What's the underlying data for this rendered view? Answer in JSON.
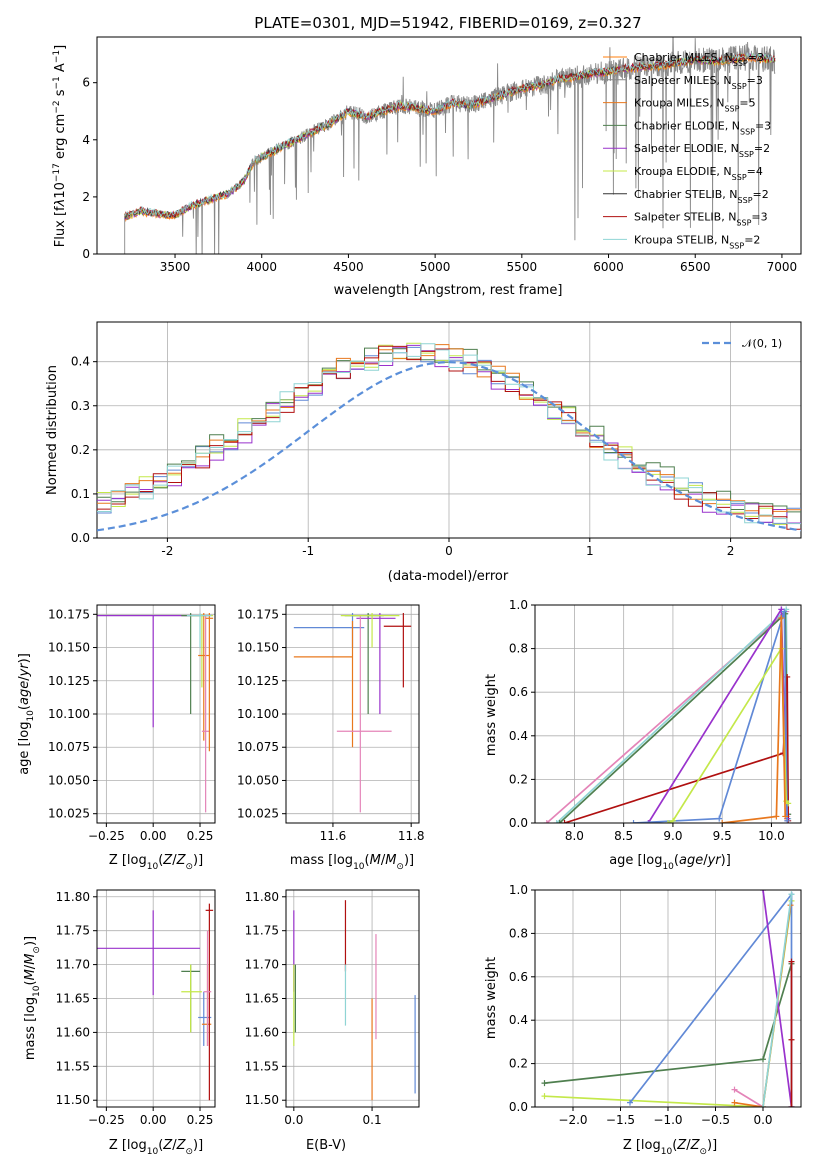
{
  "figure": {
    "title": "PLATE=0301, MJD=51942, FIBERID=0169, z=0.327"
  },
  "colors": {
    "cmiles": "#ff7f0e",
    "smiles": "#888888",
    "kmiles": "#e8781e",
    "celodie": "#4f7f4f",
    "selodie": "#9932cc",
    "kelodie": "#c4e84a",
    "cstelib": "#333333",
    "sstelib": "#b01010",
    "kstelib": "#8fd4d4",
    "blue": "#6189d6",
    "pink": "#e484b8",
    "normal": "#5b8fd9"
  },
  "chart_data": [
    {
      "id": "spectrum",
      "type": "line",
      "xlabel": "wavelength [Angstrom, rest frame]",
      "ylabel": "Flux [f$_\\lambda$10$^{-17}$ erg cm$^{-2}$ s$^{-1}$ A$^{-1}$]",
      "xlim": [
        3050,
        7110
      ],
      "ylim": [
        0,
        7.6
      ],
      "xticks": [
        3500,
        4000,
        4500,
        5000,
        5500,
        6000,
        6500,
        7000
      ],
      "yticks": [
        0,
        2,
        4,
        6
      ],
      "grid": false,
      "legend_position": "upper-right",
      "series": [
        {
          "name": "Chabrier MILES, N",
          "sub": "SSP",
          "suffix": "=3",
          "color_key": "cmiles"
        },
        {
          "name": "Salpeter MILES, N",
          "sub": "SSP",
          "suffix": "=3",
          "color_key": "smiles"
        },
        {
          "name": "Kroupa MILES, N",
          "sub": "SSP",
          "suffix": "=5",
          "color_key": "kmiles"
        },
        {
          "name": "Chabrier ELODIE, N",
          "sub": "SSP",
          "suffix": "=3",
          "color_key": "celodie"
        },
        {
          "name": "Salpeter ELODIE, N",
          "sub": "SSP",
          "suffix": "=2",
          "color_key": "selodie"
        },
        {
          "name": "Kroupa ELODIE, N",
          "sub": "SSP",
          "suffix": "=4",
          "color_key": "kelodie"
        },
        {
          "name": "Chabrier STELIB, N",
          "sub": "SSP",
          "suffix": "=2",
          "color_key": "cstelib"
        },
        {
          "name": "Salpeter STELIB, N",
          "sub": "SSP",
          "suffix": "=3",
          "color_key": "sstelib"
        },
        {
          "name": "Kroupa STELIB, N",
          "sub": "SSP",
          "suffix": "=2",
          "color_key": "kstelib"
        }
      ],
      "continuum": {
        "x": [
          3210,
          3260,
          3300,
          3400,
          3500,
          3600,
          3700,
          3800,
          3850,
          3900,
          3950,
          4000,
          4100,
          4200,
          4300,
          4400,
          4500,
          4600,
          4700,
          4800,
          4900,
          5000,
          5100,
          5200,
          5300,
          5400,
          5500,
          5600,
          5700,
          5800,
          5900,
          6000,
          6100,
          6200,
          6300,
          6400,
          6500,
          6600,
          6700,
          6800,
          6900,
          6960
        ],
        "y": [
          1.3,
          1.4,
          1.5,
          1.4,
          1.35,
          1.7,
          1.9,
          2.1,
          2.3,
          2.6,
          3.2,
          3.4,
          3.7,
          4.0,
          4.3,
          4.6,
          5.0,
          4.8,
          5.0,
          5.2,
          5.1,
          5.0,
          5.3,
          5.2,
          5.4,
          5.6,
          5.8,
          5.9,
          6.1,
          6.2,
          6.3,
          6.4,
          6.5,
          6.55,
          6.6,
          6.7,
          6.8,
          6.75,
          6.8,
          6.9,
          6.85,
          6.8
        ]
      }
    },
    {
      "id": "residuals",
      "type": "step",
      "xlabel": "(data-model)/error",
      "ylabel": "Normed distribution",
      "xlim": [
        -2.5,
        2.5
      ],
      "ylim": [
        0,
        0.49
      ],
      "xticks": [
        -2,
        -1,
        0,
        1,
        2
      ],
      "yticks": [
        0.0,
        0.1,
        0.2,
        0.3,
        0.4
      ],
      "grid": true,
      "legend_position": "upper-right",
      "legend_label": "𝒩(0, 1)",
      "bin_width": 0.1,
      "series": [
        {
          "color_key": "blue",
          "offset": 0.002,
          "seed": 1
        },
        {
          "color_key": "kelodie",
          "offset": 0.006,
          "seed": 2
        },
        {
          "color_key": "selodie",
          "offset": -0.004,
          "seed": 3
        },
        {
          "color_key": "celodie",
          "offset": 0.01,
          "seed": 4
        },
        {
          "color_key": "kmiles",
          "offset": 0.004,
          "seed": 5
        },
        {
          "color_key": "sstelib",
          "offset": -0.002,
          "seed": 6
        },
        {
          "color_key": "kstelib",
          "offset": 0.0,
          "seed": 7
        }
      ]
    },
    {
      "id": "age_vs_Z",
      "type": "errorbar",
      "xlabel": "Z [log$_{10}$(Z/Z$_\\odot$)]",
      "ylabel": "age  [log$_{10}$(age/yr)]",
      "xlim": [
        -0.3,
        0.33
      ],
      "ylim": [
        10.018,
        10.182
      ],
      "xticks": [
        -0.25,
        0.0,
        0.25
      ],
      "xticklabels": [
        "−0.25",
        "0.00",
        "0.25"
      ],
      "yticks": [
        10.025,
        10.05,
        10.075,
        10.1,
        10.125,
        10.15,
        10.175
      ],
      "grid": true,
      "points": [
        {
          "x": 0.0,
          "y": 10.174,
          "xlo": -0.3,
          "xhi": 0.3,
          "ylo": 10.09,
          "yhi": 10.174,
          "color_key": "selodie"
        },
        {
          "x": 0.2,
          "y": 10.174,
          "xlo": 0.15,
          "xhi": 0.25,
          "ylo": 10.1,
          "yhi": 10.176,
          "color_key": "celodie"
        },
        {
          "x": 0.26,
          "y": 10.174,
          "xlo": 0.2,
          "xhi": 0.32,
          "ylo": 10.12,
          "yhi": 10.175,
          "color_key": "kelodie"
        },
        {
          "x": 0.27,
          "y": 10.144,
          "xlo": 0.24,
          "xhi": 0.3,
          "ylo": 10.08,
          "yhi": 10.176,
          "color_key": "kmiles"
        },
        {
          "x": 0.28,
          "y": 10.087,
          "xlo": 0.26,
          "xhi": 0.3,
          "ylo": 10.026,
          "yhi": 10.174,
          "color_key": "pink"
        },
        {
          "x": 0.3,
          "y": 10.172,
          "xlo": 0.28,
          "xhi": 0.32,
          "ylo": 10.072,
          "yhi": 10.176,
          "color_key": "kmiles"
        },
        {
          "x": 0.25,
          "y": 10.174,
          "xlo": 0.18,
          "xhi": 0.31,
          "ylo": 10.15,
          "yhi": 10.176,
          "color_key": "kstelib"
        }
      ]
    },
    {
      "id": "age_vs_mass",
      "type": "errorbar",
      "xlabel": "mass [log$_{10}$(M/M$_\\odot$)]",
      "xlim": [
        11.48,
        11.82
      ],
      "ylim": [
        10.018,
        10.182
      ],
      "xticks": [
        11.6,
        11.8
      ],
      "yticks": [
        10.025,
        10.05,
        10.075,
        10.1,
        10.125,
        10.15,
        10.175
      ],
      "grid": true,
      "points": [
        {
          "x": 11.65,
          "y": 10.165,
          "xlo": 11.5,
          "xhi": 11.68,
          "ylo": 10.15,
          "yhi": 10.176,
          "color_key": "blue"
        },
        {
          "x": 11.65,
          "y": 10.143,
          "xlo": 11.5,
          "xhi": 11.65,
          "ylo": 10.075,
          "yhi": 10.17,
          "color_key": "kmiles"
        },
        {
          "x": 11.69,
          "y": 10.174,
          "xlo": 11.63,
          "xhi": 11.73,
          "ylo": 10.1,
          "yhi": 10.176,
          "color_key": "celodie"
        },
        {
          "x": 11.72,
          "y": 10.172,
          "xlo": 11.66,
          "xhi": 11.76,
          "ylo": 10.1,
          "yhi": 10.176,
          "color_key": "selodie"
        },
        {
          "x": 11.78,
          "y": 10.166,
          "xlo": 11.73,
          "xhi": 11.8,
          "ylo": 10.12,
          "yhi": 10.176,
          "color_key": "sstelib"
        },
        {
          "x": 11.67,
          "y": 10.087,
          "xlo": 11.61,
          "xhi": 11.75,
          "ylo": 10.026,
          "yhi": 10.174,
          "color_key": "pink"
        },
        {
          "x": 11.7,
          "y": 10.174,
          "xlo": 11.62,
          "xhi": 11.77,
          "ylo": 10.15,
          "yhi": 10.176,
          "color_key": "kelodie"
        }
      ]
    },
    {
      "id": "weight_vs_age",
      "type": "line",
      "xlabel": "age  [log$_{10}$(age/yr)]",
      "ylabel": "mass weight",
      "xlim": [
        7.6,
        10.3
      ],
      "ylim": [
        0,
        1.0
      ],
      "xticks": [
        8.0,
        8.5,
        9.0,
        9.5,
        10.0
      ],
      "yticks": [
        0.0,
        0.2,
        0.4,
        0.6,
        0.8,
        1.0
      ],
      "grid": true,
      "series": [
        {
          "color_key": "pink",
          "x": [
            7.72,
            10.15,
            10.16
          ],
          "y": [
            0.0,
            0.97,
            0.03
          ]
        },
        {
          "color_key": "kstelib",
          "x": [
            7.82,
            10.15,
            10.17
          ],
          "y": [
            0.0,
            0.98,
            0.02
          ]
        },
        {
          "color_key": "celodie",
          "x": [
            7.85,
            10.14,
            10.17
          ],
          "y": [
            0.0,
            0.96,
            0.04
          ]
        },
        {
          "color_key": "sstelib",
          "x": [
            7.9,
            10.12,
            10.16,
            10.17
          ],
          "y": [
            0.0,
            0.32,
            0.67,
            0.01
          ]
        },
        {
          "color_key": "selodie",
          "x": [
            8.75,
            10.1,
            10.16
          ],
          "y": [
            0.0,
            0.98,
            0.02
          ]
        },
        {
          "color_key": "blue",
          "x": [
            8.6,
            9.47,
            10.13,
            10.16
          ],
          "y": [
            0.0,
            0.02,
            0.97,
            0.01
          ]
        },
        {
          "color_key": "kelodie",
          "x": [
            8.95,
            9.0,
            10.1,
            10.15,
            10.17
          ],
          "y": [
            0.0,
            0.01,
            0.8,
            0.1,
            0.09
          ]
        },
        {
          "color_key": "kmiles",
          "x": [
            9.5,
            10.05,
            10.1,
            10.14
          ],
          "y": [
            0.0,
            0.03,
            0.94,
            0.03
          ]
        }
      ]
    },
    {
      "id": "mass_vs_Z",
      "type": "errorbar",
      "xlabel": "Z [log$_{10}$(Z/Z$_\\odot$)]",
      "ylabel": "mass [log$_{10}$(M/M$_\\odot$)]",
      "xlim": [
        -0.3,
        0.33
      ],
      "ylim": [
        11.49,
        11.81
      ],
      "xticks": [
        -0.25,
        0.0,
        0.25
      ],
      "xticklabels": [
        "−0.25",
        "0.00",
        "0.25"
      ],
      "yticks": [
        11.5,
        11.55,
        11.6,
        11.65,
        11.7,
        11.75,
        11.8
      ],
      "grid": true,
      "points": [
        {
          "x": 0.0,
          "y": 11.724,
          "xlo": -0.3,
          "xhi": 0.25,
          "ylo": 11.655,
          "yhi": 11.78,
          "color_key": "selodie"
        },
        {
          "x": 0.2,
          "y": 11.69,
          "xlo": 0.15,
          "xhi": 0.25,
          "ylo": 11.6,
          "yhi": 11.7,
          "color_key": "celodie"
        },
        {
          "x": 0.2,
          "y": 11.66,
          "xlo": 0.15,
          "xhi": 0.26,
          "ylo": 11.6,
          "yhi": 11.7,
          "color_key": "kelodie"
        },
        {
          "x": 0.27,
          "y": 11.622,
          "xlo": 0.24,
          "xhi": 0.31,
          "ylo": 11.58,
          "yhi": 11.66,
          "color_key": "blue"
        },
        {
          "x": 0.29,
          "y": 11.612,
          "xlo": 0.26,
          "xhi": 0.31,
          "ylo": 11.58,
          "yhi": 11.7,
          "color_key": "kmiles"
        },
        {
          "x": 0.3,
          "y": 11.78,
          "xlo": 0.28,
          "xhi": 0.32,
          "ylo": 11.5,
          "yhi": 11.79,
          "color_key": "sstelib"
        },
        {
          "x": 0.29,
          "y": 11.66,
          "xlo": 0.27,
          "xhi": 0.31,
          "ylo": 11.58,
          "yhi": 11.75,
          "color_key": "pink"
        }
      ]
    },
    {
      "id": "mass_vs_ebv",
      "type": "errorbar",
      "xlabel": "E(B-V)",
      "xlim": [
        -0.01,
        0.16
      ],
      "ylim": [
        11.49,
        11.81
      ],
      "xticks": [
        0.0,
        0.1
      ],
      "yticks": [
        11.5,
        11.55,
        11.6,
        11.65,
        11.7,
        11.75,
        11.8
      ],
      "grid": true,
      "points": [
        {
          "x": 0.0,
          "y": 11.72,
          "ylo": 11.66,
          "yhi": 11.78,
          "color_key": "selodie"
        },
        {
          "x": 0.002,
          "y": 11.66,
          "ylo": 11.6,
          "yhi": 11.7,
          "color_key": "celodie"
        },
        {
          "x": 0.0,
          "y": 11.62,
          "ylo": 11.58,
          "yhi": 11.7,
          "color_key": "kelodie"
        },
        {
          "x": 0.066,
          "y": 11.74,
          "ylo": 11.69,
          "yhi": 11.795,
          "color_key": "sstelib"
        },
        {
          "x": 0.066,
          "y": 11.66,
          "ylo": 11.61,
          "yhi": 11.7,
          "color_key": "kstelib"
        },
        {
          "x": 0.1,
          "y": 11.57,
          "ylo": 11.5,
          "yhi": 11.65,
          "color_key": "kmiles"
        },
        {
          "x": 0.105,
          "y": 11.68,
          "ylo": 11.59,
          "yhi": 11.745,
          "color_key": "pink"
        },
        {
          "x": 0.155,
          "y": 11.6,
          "ylo": 11.51,
          "yhi": 11.655,
          "color_key": "blue"
        }
      ]
    },
    {
      "id": "weight_vs_Z",
      "type": "line",
      "xlabel": "Z [log$_{10}$(Z/Z$_\\odot$)]",
      "ylabel": "mass weight",
      "xlim": [
        -2.4,
        0.4
      ],
      "ylim": [
        0,
        1.0
      ],
      "xticks": [
        -2.0,
        -1.5,
        -1.0,
        -0.5,
        0.0
      ],
      "xticklabels": [
        "−2.0",
        "−1.5",
        "−1.0",
        "−0.5",
        "0.0"
      ],
      "yticks": [
        0.0,
        0.2,
        0.4,
        0.6,
        0.8,
        1.0
      ],
      "grid": true,
      "series": [
        {
          "color_key": "celodie",
          "x": [
            -2.3,
            0.0,
            0.3
          ],
          "y": [
            0.11,
            0.22,
            0.66
          ]
        },
        {
          "color_key": "kelodie",
          "x": [
            -2.3,
            0.0,
            0.3
          ],
          "y": [
            0.05,
            0.0,
            0.95
          ]
        },
        {
          "color_key": "blue",
          "x": [
            -1.4,
            0.3,
            0.3
          ],
          "y": [
            0.02,
            0.98,
            0.0
          ]
        },
        {
          "color_key": "pink",
          "x": [
            -0.3,
            0.0
          ],
          "y": [
            0.08,
            0.0
          ]
        },
        {
          "color_key": "kmiles",
          "x": [
            -0.3,
            0.0,
            0.29
          ],
          "y": [
            0.02,
            0.0,
            0.93
          ]
        },
        {
          "color_key": "selodie",
          "x": [
            0.0,
            0.3
          ],
          "y": [
            1.0,
            0.0
          ]
        },
        {
          "color_key": "sstelib",
          "x": [
            0.3,
            0.3,
            0.3
          ],
          "y": [
            0.0,
            0.67,
            0.31
          ]
        },
        {
          "color_key": "kstelib",
          "x": [
            0.0,
            0.3
          ],
          "y": [
            0.0,
            0.98
          ]
        }
      ]
    }
  ]
}
